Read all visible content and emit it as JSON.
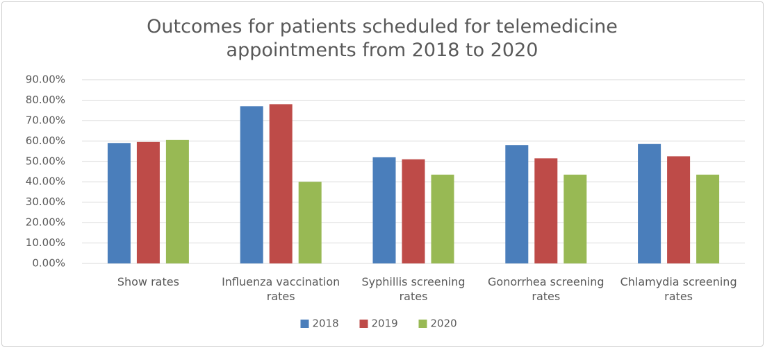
{
  "chart_data": {
    "type": "bar",
    "title": "Outcomes for patients scheduled for telemedicine appointments from 2018 to 2020",
    "categories": [
      "Show rates",
      "Influenza vaccination rates",
      "Syphillis screening rates",
      "Gonorrhea screening rates",
      "Chlamydia screening rates"
    ],
    "series": [
      {
        "name": "2018",
        "color": "#4a7ebb",
        "values": [
          59,
          77,
          52,
          58,
          58.5
        ]
      },
      {
        "name": "2019",
        "color": "#be4b48",
        "values": [
          59.5,
          78,
          51,
          51.5,
          52.5
        ]
      },
      {
        "name": "2020",
        "color": "#98b954",
        "values": [
          60.5,
          40,
          43.5,
          43.5,
          43.5
        ]
      }
    ],
    "ylim": [
      0,
      90
    ],
    "yticks": [
      {
        "value": 0,
        "label": "0.00%"
      },
      {
        "value": 10,
        "label": "10.00%"
      },
      {
        "value": 20,
        "label": "20.00%"
      },
      {
        "value": 30,
        "label": "30.00%"
      },
      {
        "value": 40,
        "label": "40.00%"
      },
      {
        "value": 50,
        "label": "50.00%"
      },
      {
        "value": 60,
        "label": "60.00%"
      },
      {
        "value": 70,
        "label": "70.00%"
      },
      {
        "value": 80,
        "label": "80.00%"
      },
      {
        "value": 90,
        "label": "90.00%"
      }
    ],
    "grid": true,
    "legend": "bottom"
  }
}
